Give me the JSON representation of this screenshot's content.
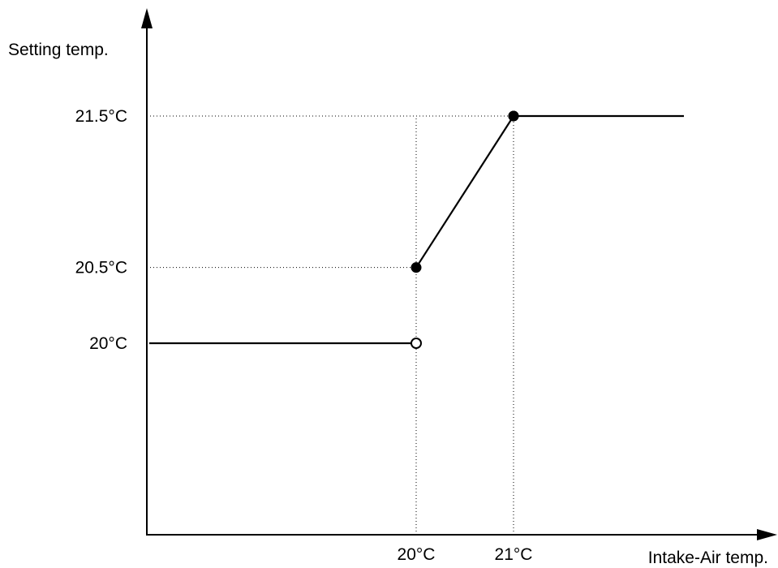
{
  "chart_data": {
    "type": "line",
    "xlabel": "Intake-Air temp.",
    "ylabel": "Setting temp.",
    "x_ticks": [
      {
        "value": 20,
        "label": "20°C"
      },
      {
        "value": 21,
        "label": "21°C"
      }
    ],
    "y_ticks": [
      {
        "value": 20,
        "label": "20°C"
      },
      {
        "value": 20.5,
        "label": "20.5°C"
      },
      {
        "value": 21.5,
        "label": "21.5°C"
      }
    ],
    "segments": [
      {
        "from": [
          17.3,
          20
        ],
        "to": [
          20,
          20
        ],
        "start_marker": "none",
        "end_marker": "open"
      },
      {
        "from": [
          20,
          20.5
        ],
        "to": [
          21,
          21.5
        ],
        "start_marker": "filled",
        "end_marker": "filled"
      },
      {
        "from": [
          21,
          21.5
        ],
        "to": [
          22.75,
          21.5
        ],
        "start_marker": "filled",
        "end_marker": "none"
      }
    ],
    "guides": [
      {
        "axis": "y",
        "value": 21.5,
        "x_end": 21
      },
      {
        "axis": "y",
        "value": 20.5,
        "x_end": 20
      },
      {
        "axis": "x",
        "value": 20,
        "y_end": 21.5
      },
      {
        "axis": "x",
        "value": 21,
        "y_end": 21.5
      }
    ],
    "grid": false,
    "legend": "none"
  }
}
